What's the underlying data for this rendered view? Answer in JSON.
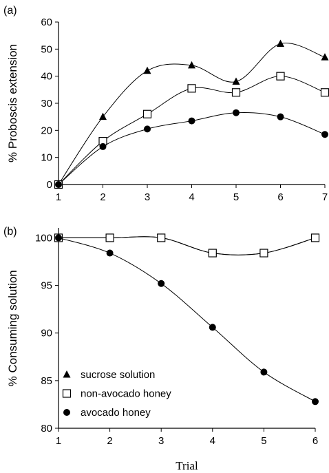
{
  "chart_data": [
    {
      "panel": "(a)",
      "type": "line",
      "ylabel": "% Proboscis extension",
      "xlabel": "",
      "categories": [
        1,
        2,
        3,
        4,
        5,
        6,
        7
      ],
      "ylim": [
        0,
        60
      ],
      "yticks": [
        0,
        10,
        20,
        30,
        40,
        50,
        60
      ],
      "series": [
        {
          "key": "sucrose",
          "marker": "triangle",
          "values": [
            0,
            25,
            42,
            44,
            38,
            52,
            47
          ]
        },
        {
          "key": "nonavocado",
          "marker": "square",
          "values": [
            0,
            16,
            26,
            35.5,
            34,
            40,
            34
          ]
        },
        {
          "key": "avocado",
          "marker": "circle",
          "values": [
            0,
            14,
            20.5,
            23.5,
            26.5,
            25,
            18.5
          ]
        }
      ]
    },
    {
      "panel": "(b)",
      "type": "line",
      "ylabel": "% Consuming solution",
      "xlabel": "Trial",
      "categories": [
        1,
        2,
        3,
        4,
        5,
        6
      ],
      "ylim": [
        80,
        101
      ],
      "yticks": [
        80,
        85,
        90,
        95,
        100
      ],
      "series": [
        {
          "key": "sucrose",
          "name": "sucrose solution",
          "marker": "triangle",
          "values": [
            100,
            100,
            100,
            98.4,
            98.4,
            100
          ]
        },
        {
          "key": "nonavocado",
          "name": "non-avocado honey",
          "marker": "square",
          "values": [
            100,
            100,
            100,
            98.4,
            98.4,
            100
          ]
        },
        {
          "key": "avocado",
          "name": "avocado honey",
          "marker": "circle",
          "values": [
            100,
            98.4,
            95.2,
            90.6,
            85.9,
            82.8
          ]
        }
      ],
      "legend_position": "bottom-left"
    }
  ]
}
